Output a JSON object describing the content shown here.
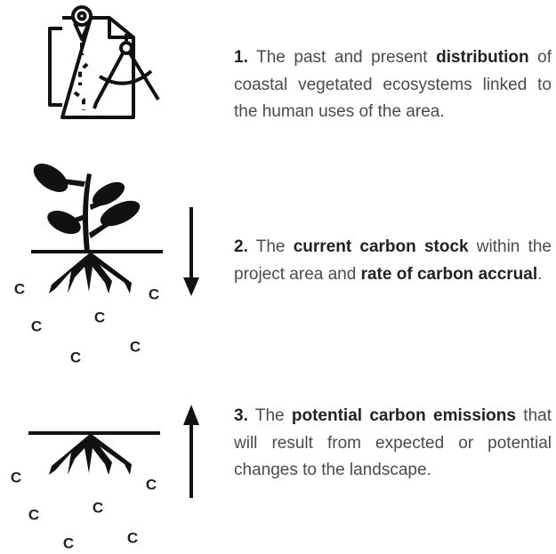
{
  "items": [
    {
      "segments": [
        {
          "text": "1.",
          "bold": true
        },
        {
          "text": " The past and present ",
          "bold": false
        },
        {
          "text": "distribution",
          "bold": true
        },
        {
          "text": " of coastal vegetated ecosystems linked to the human uses of the area.",
          "bold": false
        }
      ],
      "icon_letters": []
    },
    {
      "segments": [
        {
          "text": "2.",
          "bold": true
        },
        {
          "text": " The ",
          "bold": false
        },
        {
          "text": "current carbon stock",
          "bold": true
        },
        {
          "text": " within the project area and ",
          "bold": false
        },
        {
          "text": "rate of carbon accrual",
          "bold": true
        },
        {
          "text": ".",
          "bold": false
        }
      ],
      "icon_letters": [
        "C",
        "C",
        "C",
        "C",
        "C",
        "C"
      ]
    },
    {
      "segments": [
        {
          "text": "3.",
          "bold": true
        },
        {
          "text": " The ",
          "bold": false
        },
        {
          "text": "potential carbon emissions",
          "bold": true
        },
        {
          "text": " that will result from expected or potential changes to the landscape.",
          "bold": false
        }
      ],
      "icon_letters": [
        "C",
        "C",
        "C",
        "C",
        "C",
        "C"
      ]
    }
  ]
}
